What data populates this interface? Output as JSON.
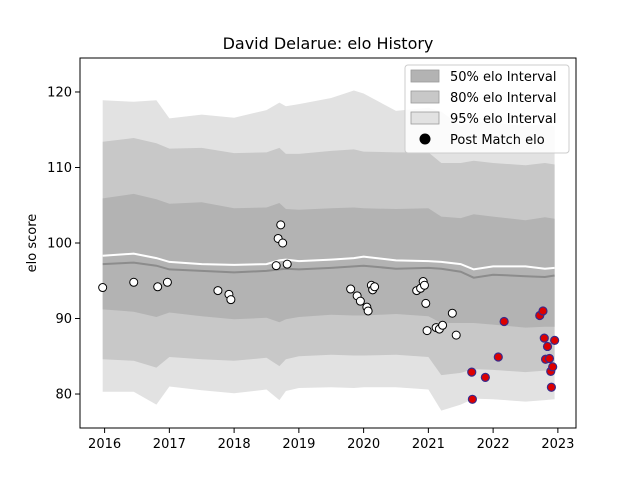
{
  "chart_data": {
    "type": "scatter",
    "title": "David Delarue: elo History",
    "xlabel": "",
    "ylabel": "elo score",
    "xlim": [
      2015.62,
      2023.28
    ],
    "ylim": [
      75.5,
      124.5
    ],
    "x_ticks": [
      2016,
      2017,
      2018,
      2019,
      2020,
      2021,
      2022,
      2023
    ],
    "x_tick_labels": [
      "2016",
      "2017",
      "2018",
      "2019",
      "2020",
      "2021",
      "2022",
      "2023"
    ],
    "y_ticks": [
      80,
      90,
      100,
      110,
      120
    ],
    "y_tick_labels": [
      "80",
      "90",
      "100",
      "110",
      "120"
    ],
    "grid": false,
    "legend_position": "top-right",
    "legend": [
      {
        "label": "50% elo Interval",
        "kind": "band",
        "color": "#b3b3b3"
      },
      {
        "label": "80% elo Interval",
        "kind": "band",
        "color": "#c8c8c8"
      },
      {
        "label": "95% elo Interval",
        "kind": "band",
        "color": "#e2e2e2"
      },
      {
        "label": "Post Match elo",
        "kind": "marker",
        "color": "#000000"
      }
    ],
    "colors": {
      "band_50": "#b3b3b3",
      "band_80": "#c8c8c8",
      "band_95": "#e2e2e2",
      "median_line": "#8c8c8c",
      "mean_line": "#ffffff",
      "point_old_fill": "#ffffff",
      "point_new_fill": "#dd0000",
      "point_new_edge": "#3a2a8a"
    },
    "bands": {
      "x": [
        2015.97,
        2016.45,
        2016.8,
        2017.0,
        2017.5,
        2018.0,
        2018.5,
        2018.7,
        2018.8,
        2019.0,
        2019.5,
        2019.85,
        2020.0,
        2020.5,
        2021.0,
        2021.2,
        2021.5,
        2021.7,
        2022.0,
        2022.5,
        2022.8,
        2022.95
      ],
      "p95_low": [
        80.3,
        80.3,
        78.6,
        81.0,
        80.5,
        80.1,
        80.6,
        79.2,
        80.4,
        80.8,
        80.9,
        80.8,
        80.9,
        80.9,
        80.6,
        77.8,
        78.6,
        79.4,
        79.3,
        79.0,
        79.2,
        79.3
      ],
      "p80_low": [
        84.6,
        84.4,
        83.5,
        84.9,
        84.6,
        84.4,
        84.8,
        83.7,
        84.6,
        85.0,
        85.2,
        85.1,
        85.1,
        85.2,
        84.9,
        82.5,
        82.8,
        83.3,
        83.2,
        82.9,
        83.1,
        83.2
      ],
      "p50_low": [
        91.2,
        90.9,
        90.2,
        90.8,
        90.3,
        89.9,
        90.1,
        89.5,
        89.9,
        90.2,
        90.5,
        90.4,
        90.4,
        90.6,
        90.3,
        89.4,
        89.4,
        89.4,
        89.2,
        88.8,
        88.9,
        88.9
      ],
      "p50_high": [
        105.9,
        106.5,
        105.8,
        105.2,
        105.4,
        104.6,
        104.7,
        105.3,
        104.5,
        104.4,
        104.6,
        104.7,
        104.6,
        104.5,
        104.6,
        103.5,
        103.3,
        103.8,
        103.5,
        103.0,
        103.4,
        103.2
      ],
      "p80_high": [
        113.4,
        113.9,
        113.2,
        112.5,
        112.6,
        111.9,
        112.0,
        112.6,
        111.8,
        111.8,
        112.2,
        112.4,
        112.1,
        112.0,
        112.0,
        110.6,
        110.6,
        110.9,
        110.6,
        110.3,
        110.6,
        110.4
      ],
      "p95_high": [
        118.9,
        118.7,
        118.9,
        116.5,
        117.0,
        116.6,
        117.6,
        118.6,
        118.1,
        118.4,
        119.2,
        120.2,
        119.8,
        117.5,
        117.9,
        117.4,
        115.5,
        116.1,
        115.9,
        115.5,
        115.7,
        115.5
      ],
      "median": [
        97.2,
        97.4,
        97.0,
        96.5,
        96.3,
        96.1,
        96.3,
        96.5,
        96.6,
        96.5,
        96.7,
        96.9,
        97.0,
        96.6,
        96.7,
        96.6,
        96.2,
        95.4,
        95.8,
        95.6,
        95.5,
        95.7
      ],
      "mean": [
        98.3,
        98.6,
        98.0,
        97.5,
        97.2,
        97.1,
        97.2,
        97.7,
        97.8,
        97.6,
        97.8,
        98.0,
        98.2,
        97.7,
        97.6,
        97.5,
        97.2,
        96.5,
        96.9,
        96.9,
        96.6,
        96.7
      ]
    },
    "points_before_2021_6": [
      [
        2015.97,
        94.1
      ],
      [
        2016.45,
        94.8
      ],
      [
        2016.82,
        94.2
      ],
      [
        2016.97,
        94.8
      ],
      [
        2017.75,
        93.7
      ],
      [
        2017.92,
        93.2
      ],
      [
        2017.95,
        92.5
      ],
      [
        2018.65,
        97.0
      ],
      [
        2018.68,
        100.6
      ],
      [
        2018.72,
        102.4
      ],
      [
        2018.75,
        100.0
      ],
      [
        2018.82,
        97.2
      ],
      [
        2019.8,
        93.9
      ],
      [
        2019.9,
        93.0
      ],
      [
        2019.95,
        92.3
      ],
      [
        2020.05,
        91.5
      ],
      [
        2020.07,
        91.0
      ],
      [
        2020.12,
        94.4
      ],
      [
        2020.14,
        93.8
      ],
      [
        2020.17,
        94.2
      ],
      [
        2020.82,
        93.7
      ],
      [
        2020.88,
        94.0
      ],
      [
        2020.92,
        94.9
      ],
      [
        2020.94,
        94.4
      ],
      [
        2020.96,
        92.0
      ],
      [
        2020.98,
        88.4
      ],
      [
        2021.12,
        88.8
      ],
      [
        2021.17,
        88.6
      ],
      [
        2021.22,
        89.1
      ],
      [
        2021.37,
        90.7
      ],
      [
        2021.43,
        87.8
      ]
    ],
    "points_after_2021_6": [
      [
        2021.67,
        82.9
      ],
      [
        2021.68,
        79.3
      ],
      [
        2021.88,
        82.2
      ],
      [
        2022.08,
        84.9
      ],
      [
        2022.17,
        89.6
      ],
      [
        2022.72,
        90.4
      ],
      [
        2022.77,
        91.0
      ],
      [
        2022.79,
        87.4
      ],
      [
        2022.81,
        84.6
      ],
      [
        2022.84,
        86.3
      ],
      [
        2022.87,
        84.7
      ],
      [
        2022.89,
        83.0
      ],
      [
        2022.92,
        83.6
      ],
      [
        2022.9,
        80.9
      ],
      [
        2022.95,
        87.1
      ]
    ]
  }
}
